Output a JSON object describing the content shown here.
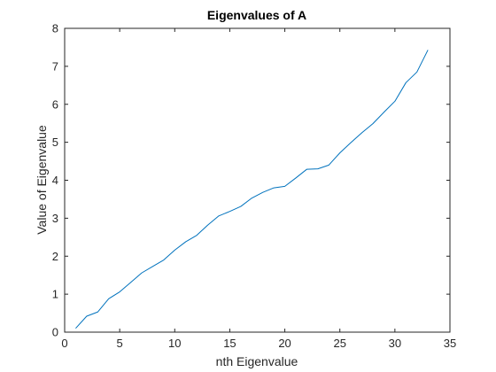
{
  "chart_data": {
    "type": "line",
    "title": "Eigenvalues of A",
    "xlabel": "nth Eigenvalue",
    "ylabel": "Value of Eigenvalue",
    "xlim": [
      0,
      35
    ],
    "ylim": [
      0,
      8
    ],
    "xticks": [
      0,
      5,
      10,
      15,
      20,
      25,
      30,
      35
    ],
    "yticks": [
      0,
      1,
      2,
      3,
      4,
      5,
      6,
      7,
      8
    ],
    "grid": false,
    "line_color": "#0072bd",
    "series": [
      {
        "x": [
          1,
          2,
          3,
          4,
          5,
          6,
          7,
          8,
          9,
          10,
          11,
          12,
          13,
          14,
          15,
          16,
          17,
          18,
          19,
          20,
          21,
          22,
          23,
          24,
          25,
          26,
          27,
          28,
          29,
          30,
          31,
          32,
          33
        ],
        "values": [
          0.1,
          0.42,
          0.53,
          0.88,
          1.06,
          1.31,
          1.56,
          1.73,
          1.9,
          2.16,
          2.38,
          2.55,
          2.82,
          3.06,
          3.18,
          3.31,
          3.53,
          3.68,
          3.8,
          3.84,
          4.06,
          4.29,
          4.3,
          4.4,
          4.72,
          4.99,
          5.25,
          5.49,
          5.79,
          6.08,
          6.57,
          6.85,
          7.43
        ]
      }
    ]
  }
}
